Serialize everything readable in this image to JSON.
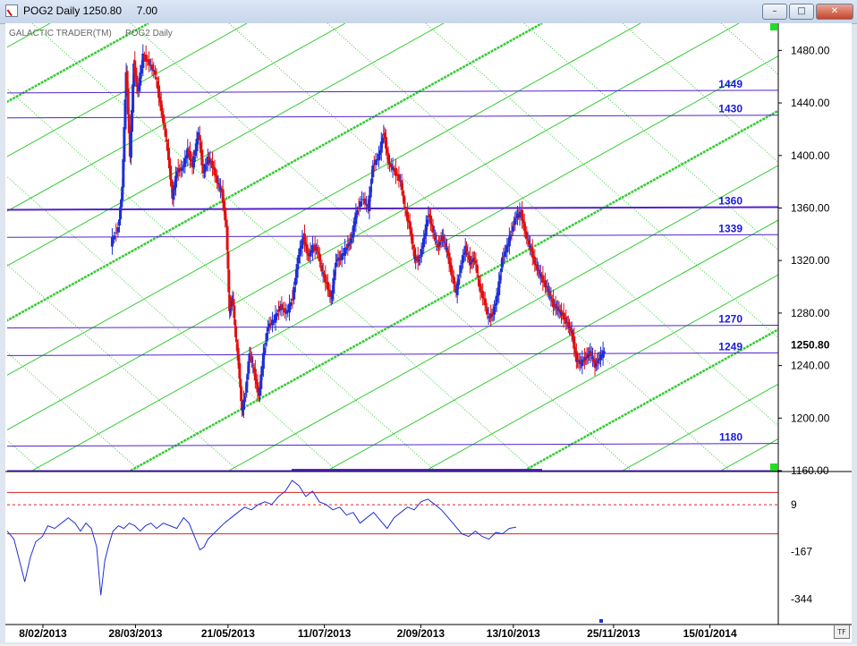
{
  "window": {
    "title": "POG2 Daily 1250.80",
    "title_extra": "7.00",
    "minimize_icon": "minimize-icon",
    "maximize_icon": "maximize-icon",
    "close_icon": "close-icon"
  },
  "chart_labels": {
    "brand": "GALACTIC TRADER(TM)",
    "instrument": "POG2 Daily",
    "tf_button": "TF"
  },
  "chart_data": {
    "type": "candlestick",
    "x_ticks": [
      "8/02/2013",
      "28/03/2013",
      "21/05/2013",
      "11/07/2013",
      "2/09/2013",
      "13/10/2013",
      "25/11/2013",
      "15/01/2014"
    ],
    "price_axis": {
      "ticks": [
        "1480.00",
        "1440.00",
        "1400.00",
        "1360.00",
        "1320.00",
        "1280.00",
        "1240.00",
        "1200.00",
        "1160.00"
      ],
      "range": [
        1160,
        1500
      ],
      "last_price_label": "1250.80",
      "last_price": 1250.8
    },
    "levels": [
      {
        "label": "1449",
        "value": 1449
      },
      {
        "label": "1430",
        "value": 1430
      },
      {
        "label": "1360",
        "value": 1360
      },
      {
        "label": "1339",
        "value": 1339
      },
      {
        "label": "1270",
        "value": 1270
      },
      {
        "label": "1249",
        "value": 1249
      },
      {
        "label": "1180",
        "value": 1180
      }
    ],
    "price_path": [
      [
        0.0,
        1333
      ],
      [
        0.01,
        1345
      ],
      [
        0.015,
        1375
      ],
      [
        0.02,
        1465
      ],
      [
        0.025,
        1400
      ],
      [
        0.03,
        1470
      ],
      [
        0.035,
        1448
      ],
      [
        0.042,
        1476
      ],
      [
        0.05,
        1470
      ],
      [
        0.058,
        1462
      ],
      [
        0.064,
        1440
      ],
      [
        0.07,
        1420
      ],
      [
        0.075,
        1398
      ],
      [
        0.08,
        1368
      ],
      [
        0.086,
        1388
      ],
      [
        0.093,
        1390
      ],
      [
        0.1,
        1404
      ],
      [
        0.106,
        1392
      ],
      [
        0.114,
        1418
      ],
      [
        0.12,
        1386
      ],
      [
        0.126,
        1398
      ],
      [
        0.132,
        1392
      ],
      [
        0.138,
        1380
      ],
      [
        0.144,
        1372
      ],
      [
        0.15,
        1345
      ],
      [
        0.154,
        1280
      ],
      [
        0.158,
        1292
      ],
      [
        0.162,
        1262
      ],
      [
        0.166,
        1240
      ],
      [
        0.17,
        1205
      ],
      [
        0.175,
        1220
      ],
      [
        0.18,
        1250
      ],
      [
        0.186,
        1235
      ],
      [
        0.192,
        1216
      ],
      [
        0.198,
        1248
      ],
      [
        0.204,
        1270
      ],
      [
        0.212,
        1275
      ],
      [
        0.22,
        1285
      ],
      [
        0.228,
        1280
      ],
      [
        0.236,
        1291
      ],
      [
        0.244,
        1325
      ],
      [
        0.25,
        1338
      ],
      [
        0.256,
        1323
      ],
      [
        0.262,
        1330
      ],
      [
        0.268,
        1328
      ],
      [
        0.274,
        1312
      ],
      [
        0.28,
        1302
      ],
      [
        0.286,
        1290
      ],
      [
        0.292,
        1320
      ],
      [
        0.298,
        1322
      ],
      [
        0.306,
        1330
      ],
      [
        0.312,
        1336
      ],
      [
        0.318,
        1355
      ],
      [
        0.326,
        1368
      ],
      [
        0.334,
        1360
      ],
      [
        0.34,
        1392
      ],
      [
        0.348,
        1400
      ],
      [
        0.354,
        1418
      ],
      [
        0.36,
        1395
      ],
      [
        0.368,
        1388
      ],
      [
        0.376,
        1380
      ],
      [
        0.382,
        1358
      ],
      [
        0.388,
        1345
      ],
      [
        0.394,
        1322
      ],
      [
        0.4,
        1320
      ],
      [
        0.406,
        1336
      ],
      [
        0.412,
        1356
      ],
      [
        0.418,
        1342
      ],
      [
        0.424,
        1330
      ],
      [
        0.43,
        1338
      ],
      [
        0.436,
        1328
      ],
      [
        0.442,
        1310
      ],
      [
        0.448,
        1296
      ],
      [
        0.454,
        1316
      ],
      [
        0.46,
        1330
      ],
      [
        0.466,
        1318
      ],
      [
        0.472,
        1322
      ],
      [
        0.478,
        1300
      ],
      [
        0.484,
        1290
      ],
      [
        0.49,
        1276
      ],
      [
        0.496,
        1280
      ],
      [
        0.502,
        1296
      ],
      [
        0.508,
        1322
      ],
      [
        0.514,
        1330
      ],
      [
        0.52,
        1343
      ],
      [
        0.526,
        1354
      ],
      [
        0.532,
        1356
      ],
      [
        0.538,
        1340
      ],
      [
        0.544,
        1330
      ],
      [
        0.55,
        1318
      ],
      [
        0.556,
        1310
      ],
      [
        0.562,
        1303
      ],
      [
        0.568,
        1296
      ],
      [
        0.574,
        1286
      ],
      [
        0.58,
        1283
      ],
      [
        0.586,
        1278
      ],
      [
        0.592,
        1272
      ],
      [
        0.598,
        1265
      ],
      [
        0.604,
        1244
      ],
      [
        0.61,
        1242
      ],
      [
        0.616,
        1246
      ],
      [
        0.622,
        1250
      ],
      [
        0.628,
        1240
      ],
      [
        0.634,
        1246
      ],
      [
        0.64,
        1250.8
      ]
    ],
    "oscillator": {
      "ticks": [
        "9",
        "-167",
        "-344"
      ],
      "range": [
        -420,
        120
      ],
      "upper_band": 55,
      "mid_line": 9,
      "lower_band": -100,
      "path": [
        [
          0.0,
          -90
        ],
        [
          0.01,
          -120
        ],
        [
          0.018,
          -200
        ],
        [
          0.026,
          -280
        ],
        [
          0.034,
          -190
        ],
        [
          0.042,
          -130
        ],
        [
          0.052,
          -110
        ],
        [
          0.06,
          -70
        ],
        [
          0.07,
          -80
        ],
        [
          0.08,
          -60
        ],
        [
          0.09,
          -40
        ],
        [
          0.1,
          -60
        ],
        [
          0.108,
          -90
        ],
        [
          0.116,
          -60
        ],
        [
          0.124,
          -80
        ],
        [
          0.132,
          -150
        ],
        [
          0.138,
          -330
        ],
        [
          0.144,
          -200
        ],
        [
          0.15,
          -140
        ],
        [
          0.156,
          -90
        ],
        [
          0.164,
          -70
        ],
        [
          0.172,
          -80
        ],
        [
          0.18,
          -60
        ],
        [
          0.188,
          -70
        ],
        [
          0.196,
          -90
        ],
        [
          0.204,
          -70
        ],
        [
          0.212,
          -60
        ],
        [
          0.22,
          -80
        ],
        [
          0.23,
          -60
        ],
        [
          0.24,
          -70
        ],
        [
          0.25,
          -80
        ],
        [
          0.26,
          -40
        ],
        [
          0.268,
          -60
        ],
        [
          0.276,
          -110
        ],
        [
          0.284,
          -160
        ],
        [
          0.29,
          -150
        ],
        [
          0.296,
          -120
        ],
        [
          0.304,
          -100
        ],
        [
          0.312,
          -80
        ],
        [
          0.32,
          -60
        ],
        [
          0.33,
          -40
        ],
        [
          0.34,
          -20
        ],
        [
          0.35,
          0
        ],
        [
          0.36,
          -10
        ],
        [
          0.37,
          10
        ],
        [
          0.38,
          20
        ],
        [
          0.39,
          10
        ],
        [
          0.4,
          40
        ],
        [
          0.41,
          60
        ],
        [
          0.42,
          100
        ],
        [
          0.43,
          80
        ],
        [
          0.44,
          40
        ],
        [
          0.45,
          60
        ],
        [
          0.46,
          20
        ],
        [
          0.47,
          10
        ],
        [
          0.48,
          -10
        ],
        [
          0.49,
          0
        ],
        [
          0.5,
          -30
        ],
        [
          0.51,
          -20
        ],
        [
          0.52,
          -60
        ],
        [
          0.53,
          -40
        ],
        [
          0.54,
          -20
        ],
        [
          0.55,
          -50
        ],
        [
          0.56,
          -80
        ],
        [
          0.57,
          -40
        ],
        [
          0.58,
          -20
        ],
        [
          0.59,
          0
        ],
        [
          0.6,
          -10
        ],
        [
          0.61,
          20
        ],
        [
          0.62,
          30
        ],
        [
          0.63,
          10
        ],
        [
          0.64,
          -10
        ],
        [
          0.65,
          -40
        ],
        [
          0.66,
          -70
        ],
        [
          0.67,
          -100
        ],
        [
          0.68,
          -110
        ],
        [
          0.69,
          -90
        ],
        [
          0.7,
          -110
        ],
        [
          0.71,
          -120
        ],
        [
          0.72,
          -95
        ],
        [
          0.73,
          -100
        ],
        [
          0.74,
          -80
        ],
        [
          0.75,
          -75
        ]
      ]
    }
  }
}
